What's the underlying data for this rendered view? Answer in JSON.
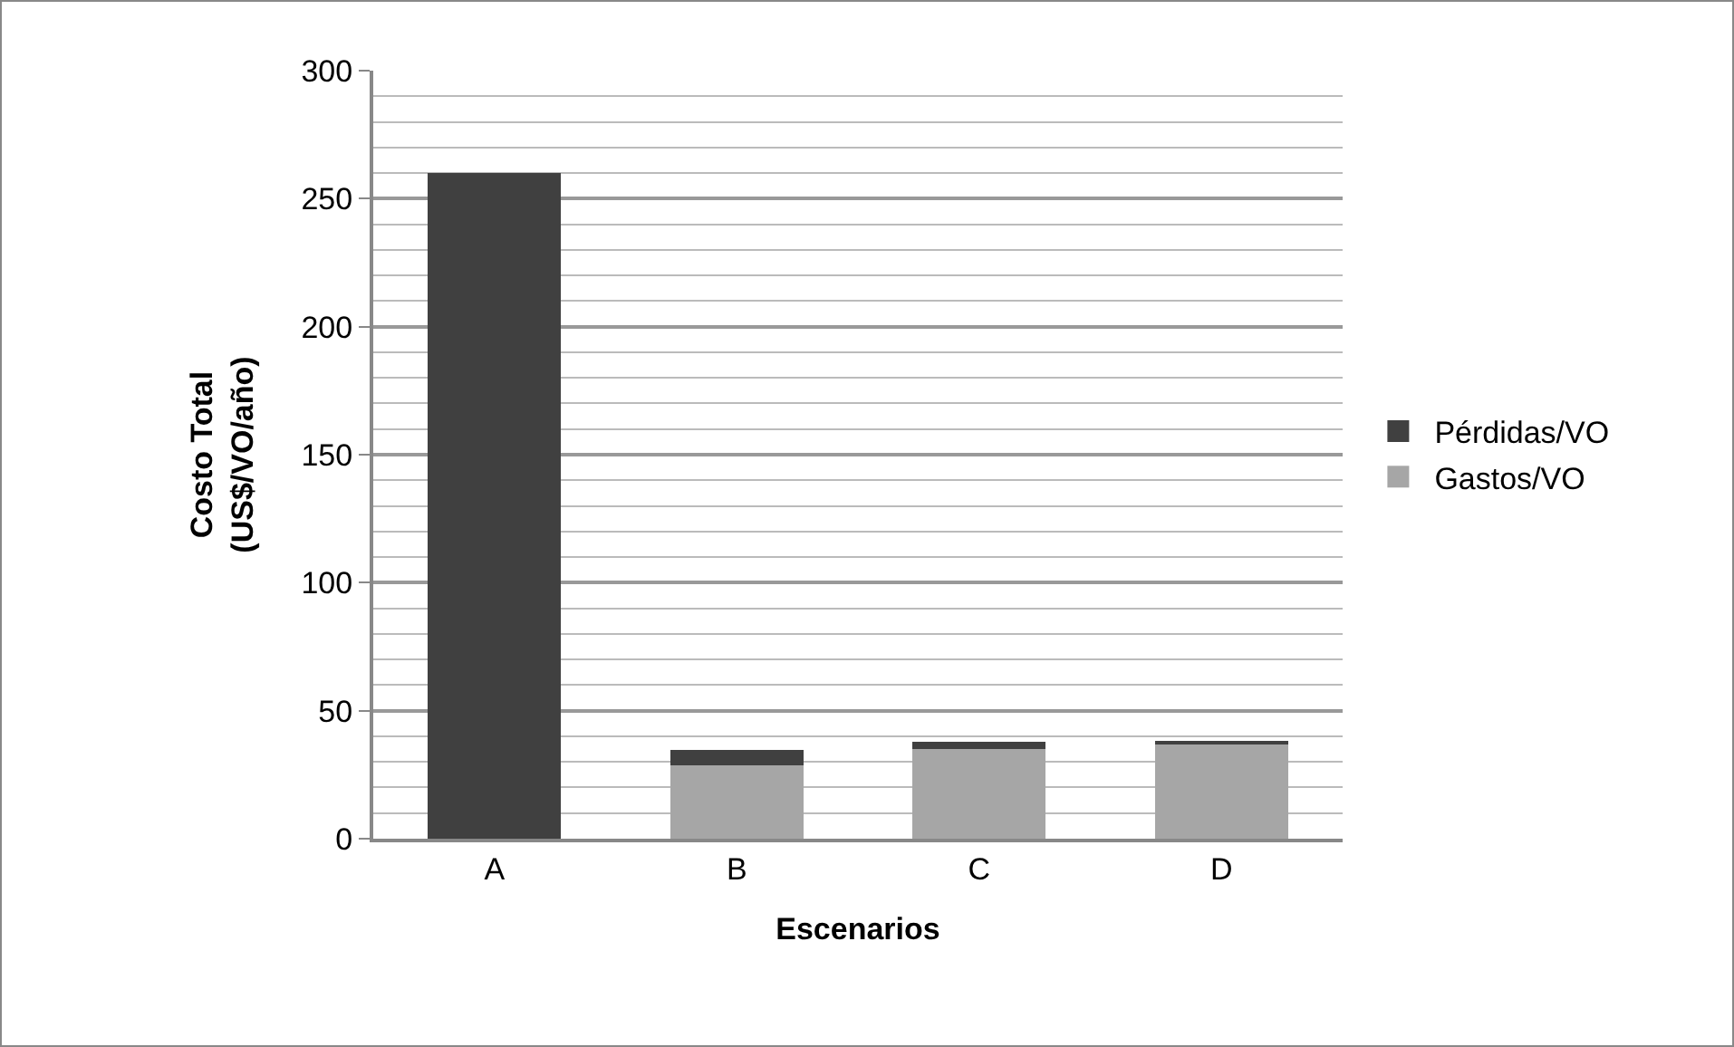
{
  "chart_data": {
    "type": "bar",
    "stacked": true,
    "xlabel": "Escenarios",
    "ylabel": "Costo Total\n(US$/VO/año)",
    "categories": [
      "A",
      "B",
      "C",
      "D"
    ],
    "series": [
      {
        "name": "Gastos/VO",
        "color": "#a6a6a6",
        "values": [
          0,
          28.5,
          35,
          37
        ]
      },
      {
        "name": "Pérdidas/VO",
        "color": "#404040",
        "values": [
          260,
          6,
          3,
          0.8
        ]
      }
    ],
    "ylim": [
      0,
      300
    ],
    "yticks": [
      0,
      50,
      100,
      150,
      200,
      250,
      300
    ],
    "grid": "y",
    "legend": "right"
  }
}
